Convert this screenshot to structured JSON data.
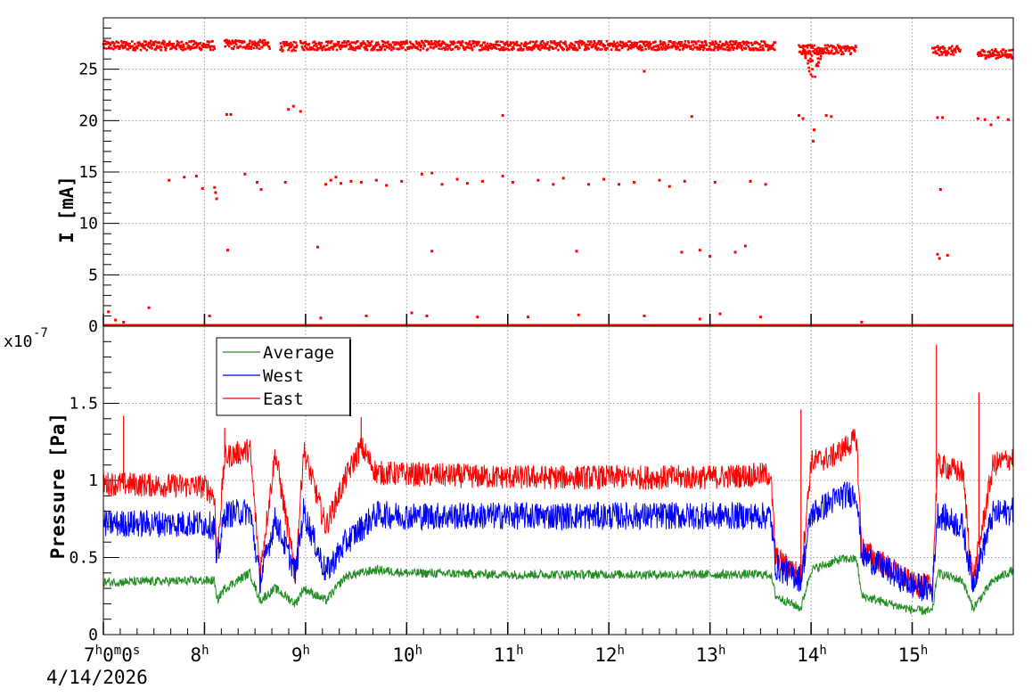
{
  "chart_data": [
    {
      "type": "scatter",
      "panel": "top",
      "ylabel": "I [mA]",
      "ylim": [
        0,
        30
      ],
      "yticks": [
        0,
        5,
        10,
        15,
        20,
        25
      ],
      "grid": true,
      "color": "#ff0000",
      "main_band": [
        {
          "x": [
            7.0,
            8.1
          ],
          "y": 27.3
        },
        {
          "x": [
            8.2,
            8.65
          ],
          "y": 27.4
        },
        {
          "x": [
            8.75,
            8.92
          ],
          "y": 27.2
        },
        {
          "x": [
            8.95,
            13.65
          ],
          "y": 27.3
        },
        {
          "x": [
            13.88,
            14.45
          ],
          "y": 26.9
        },
        {
          "x": [
            15.2,
            15.48
          ],
          "y": 26.8
        },
        {
          "x": [
            15.65,
            16.0
          ],
          "y": 26.5
        }
      ],
      "dip": {
        "x": 14.02,
        "y_min": 23.5
      },
      "scattered": [
        {
          "x": 7.05,
          "y": 1.4
        },
        {
          "x": 7.12,
          "y": 0.6
        },
        {
          "x": 7.2,
          "y": 0.4
        },
        {
          "x": 7.45,
          "y": 1.8
        },
        {
          "x": 7.65,
          "y": 14.2
        },
        {
          "x": 7.8,
          "y": 14.5
        },
        {
          "x": 7.92,
          "y": 14.6
        },
        {
          "x": 7.98,
          "y": 13.4
        },
        {
          "x": 8.05,
          "y": 1.0
        },
        {
          "x": 8.1,
          "y": 13.5
        },
        {
          "x": 8.11,
          "y": 13.0
        },
        {
          "x": 8.12,
          "y": 12.4
        },
        {
          "x": 8.22,
          "y": 20.6
        },
        {
          "x": 8.26,
          "y": 20.6
        },
        {
          "x": 8.23,
          "y": 7.4
        },
        {
          "x": 8.4,
          "y": 14.8
        },
        {
          "x": 8.52,
          "y": 14.0
        },
        {
          "x": 8.56,
          "y": 13.3
        },
        {
          "x": 8.8,
          "y": 14.0
        },
        {
          "x": 8.83,
          "y": 21.1
        },
        {
          "x": 8.88,
          "y": 21.4
        },
        {
          "x": 8.95,
          "y": 20.9
        },
        {
          "x": 9.12,
          "y": 7.7
        },
        {
          "x": 9.15,
          "y": 0.8
        },
        {
          "x": 9.2,
          "y": 13.8
        },
        {
          "x": 9.25,
          "y": 14.2
        },
        {
          "x": 9.3,
          "y": 14.5
        },
        {
          "x": 9.35,
          "y": 13.9
        },
        {
          "x": 9.45,
          "y": 14.1
        },
        {
          "x": 9.55,
          "y": 14.0
        },
        {
          "x": 9.6,
          "y": 1.0
        },
        {
          "x": 9.7,
          "y": 14.2
        },
        {
          "x": 9.8,
          "y": 13.7
        },
        {
          "x": 9.95,
          "y": 14.1
        },
        {
          "x": 10.05,
          "y": 1.3
        },
        {
          "x": 10.15,
          "y": 14.8
        },
        {
          "x": 10.25,
          "y": 14.9
        },
        {
          "x": 10.35,
          "y": 13.8
        },
        {
          "x": 10.2,
          "y": 1.0
        },
        {
          "x": 10.25,
          "y": 7.3
        },
        {
          "x": 10.5,
          "y": 14.3
        },
        {
          "x": 10.6,
          "y": 13.9
        },
        {
          "x": 10.7,
          "y": 0.9
        },
        {
          "x": 10.75,
          "y": 14.1
        },
        {
          "x": 10.95,
          "y": 20.5
        },
        {
          "x": 10.95,
          "y": 14.6
        },
        {
          "x": 11.05,
          "y": 14.0
        },
        {
          "x": 11.2,
          "y": 0.9
        },
        {
          "x": 11.3,
          "y": 14.2
        },
        {
          "x": 11.45,
          "y": 13.8
        },
        {
          "x": 11.55,
          "y": 14.4
        },
        {
          "x": 11.68,
          "y": 7.3
        },
        {
          "x": 11.7,
          "y": 1.1
        },
        {
          "x": 11.8,
          "y": 13.8
        },
        {
          "x": 11.95,
          "y": 14.3
        },
        {
          "x": 12.1,
          "y": 13.8
        },
        {
          "x": 12.25,
          "y": 14.0
        },
        {
          "x": 12.35,
          "y": 24.8
        },
        {
          "x": 12.35,
          "y": 1.0
        },
        {
          "x": 12.5,
          "y": 14.2
        },
        {
          "x": 12.6,
          "y": 13.6
        },
        {
          "x": 12.72,
          "y": 7.2
        },
        {
          "x": 12.75,
          "y": 14.1
        },
        {
          "x": 12.82,
          "y": 20.4
        },
        {
          "x": 12.9,
          "y": 7.4
        },
        {
          "x": 12.9,
          "y": 0.7
        },
        {
          "x": 13.0,
          "y": 6.8
        },
        {
          "x": 13.05,
          "y": 14.0
        },
        {
          "x": 13.1,
          "y": 1.2
        },
        {
          "x": 13.25,
          "y": 7.2
        },
        {
          "x": 13.35,
          "y": 7.8
        },
        {
          "x": 13.4,
          "y": 14.1
        },
        {
          "x": 13.5,
          "y": 0.9
        },
        {
          "x": 13.55,
          "y": 13.8
        },
        {
          "x": 13.88,
          "y": 20.5
        },
        {
          "x": 13.92,
          "y": 20.2
        },
        {
          "x": 14.02,
          "y": 18.0
        },
        {
          "x": 14.03,
          "y": 19.1
        },
        {
          "x": 14.15,
          "y": 20.5
        },
        {
          "x": 14.2,
          "y": 20.4
        },
        {
          "x": 14.5,
          "y": 0.4
        },
        {
          "x": 15.25,
          "y": 20.3
        },
        {
          "x": 15.3,
          "y": 20.3
        },
        {
          "x": 15.28,
          "y": 13.3
        },
        {
          "x": 15.25,
          "y": 7.0
        },
        {
          "x": 15.27,
          "y": 6.6
        },
        {
          "x": 15.35,
          "y": 6.9
        },
        {
          "x": 15.65,
          "y": 20.2
        },
        {
          "x": 15.72,
          "y": 20.1
        },
        {
          "x": 15.78,
          "y": 19.6
        },
        {
          "x": 15.85,
          "y": 20.3
        },
        {
          "x": 15.95,
          "y": 20.1
        }
      ],
      "baseline": {
        "y": 0,
        "segments": [
          [
            7.0,
            16.0
          ]
        ]
      }
    },
    {
      "type": "line",
      "panel": "bottom",
      "ylabel": "Pressure [Pa]",
      "yscale_label": "x10",
      "yscale_exponent": "-7",
      "ylim": [
        0,
        2.0
      ],
      "yticks": [
        0,
        0.5,
        1,
        1.5
      ],
      "ytick_labels": [
        "0",
        "0.5",
        "1",
        "1.5"
      ],
      "grid": true,
      "legend": {
        "placement": "top-left"
      },
      "xlim": [
        7.0,
        16.0
      ],
      "x_tick_hours": [
        "7",
        "8",
        "9",
        "10",
        "11",
        "12",
        "13",
        "14",
        "15"
      ],
      "series": [
        {
          "name": "Average",
          "color": "#228b22",
          "x": [
            7.0,
            8.0,
            8.1,
            8.12,
            8.2,
            8.45,
            8.55,
            8.7,
            8.9,
            8.98,
            9.2,
            9.4,
            9.7,
            10.0,
            11.0,
            12.0,
            13.0,
            13.6,
            13.65,
            13.9,
            14.0,
            14.3,
            14.45,
            14.5,
            15.0,
            15.2,
            15.25,
            15.5,
            15.6,
            15.8,
            16.0
          ],
          "y": [
            0.34,
            0.35,
            0.35,
            0.22,
            0.3,
            0.4,
            0.22,
            0.3,
            0.2,
            0.3,
            0.22,
            0.38,
            0.42,
            0.4,
            0.39,
            0.39,
            0.39,
            0.39,
            0.25,
            0.17,
            0.42,
            0.49,
            0.49,
            0.25,
            0.16,
            0.15,
            0.4,
            0.35,
            0.17,
            0.35,
            0.42
          ],
          "noise": 0.03
        },
        {
          "name": "West",
          "color": "#0000ff",
          "x": [
            7.0,
            8.0,
            8.1,
            8.12,
            8.2,
            8.45,
            8.55,
            8.7,
            8.9,
            8.98,
            9.2,
            9.4,
            9.7,
            10.0,
            11.0,
            12.0,
            13.0,
            13.6,
            13.65,
            13.9,
            14.0,
            14.3,
            14.45,
            14.5,
            15.0,
            15.2,
            15.25,
            15.5,
            15.6,
            15.8,
            16.0
          ],
          "y": [
            0.72,
            0.72,
            0.7,
            0.45,
            0.78,
            0.8,
            0.35,
            0.75,
            0.4,
            0.8,
            0.4,
            0.6,
            0.78,
            0.77,
            0.77,
            0.77,
            0.77,
            0.77,
            0.44,
            0.36,
            0.78,
            0.9,
            0.92,
            0.52,
            0.32,
            0.29,
            0.78,
            0.7,
            0.33,
            0.78,
            0.8
          ],
          "noise": 0.09
        },
        {
          "name": "East",
          "color": "#ff0000",
          "x": [
            7.0,
            8.0,
            8.1,
            8.12,
            8.2,
            8.45,
            8.55,
            8.7,
            8.9,
            8.98,
            9.2,
            9.4,
            9.55,
            9.7,
            10.0,
            11.0,
            12.0,
            13.0,
            13.6,
            13.65,
            13.9,
            14.0,
            14.2,
            14.45,
            14.5,
            15.0,
            15.2,
            15.25,
            15.5,
            15.6,
            15.8,
            16.0
          ],
          "y": [
            0.98,
            0.96,
            0.9,
            0.48,
            1.15,
            1.2,
            0.4,
            1.18,
            0.38,
            1.2,
            0.7,
            1.02,
            1.22,
            1.05,
            1.04,
            1.02,
            1.02,
            1.02,
            1.04,
            0.5,
            0.38,
            1.12,
            1.15,
            1.27,
            0.56,
            0.33,
            0.31,
            1.1,
            1.05,
            0.34,
            1.1,
            1.15
          ],
          "noise": 0.08
        }
      ],
      "spikes": [
        {
          "series": "East",
          "x": 8.2,
          "y": 1.34
        },
        {
          "series": "East",
          "x": 9.55,
          "y": 1.41
        },
        {
          "series": "East",
          "x": 13.9,
          "y": 1.46
        },
        {
          "series": "East",
          "x": 15.24,
          "y": 1.88
        },
        {
          "series": "East",
          "x": 15.66,
          "y": 1.57
        },
        {
          "series": "East",
          "x": 7.2,
          "y": 1.42
        }
      ]
    }
  ],
  "x_axis": {
    "first_label_parts": [
      "7",
      "h",
      "0",
      "m",
      "0",
      "s"
    ],
    "hour_suffix": "h",
    "date": "4/14/2026"
  },
  "legend_labels": [
    "Average",
    "West",
    "East"
  ]
}
